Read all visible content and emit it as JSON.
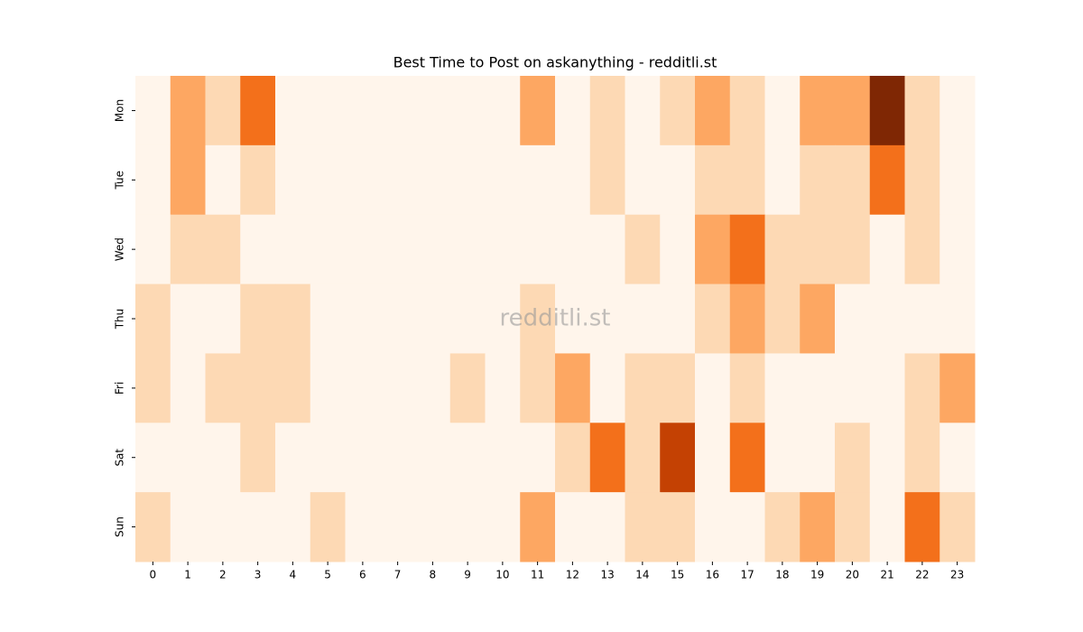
{
  "chart_data": {
    "type": "heatmap",
    "title": "Best Time to Post on askanything - redditli.st",
    "watermark": "redditli.st",
    "x_categories": [
      0,
      1,
      2,
      3,
      4,
      5,
      6,
      7,
      8,
      9,
      10,
      11,
      12,
      13,
      14,
      15,
      16,
      17,
      18,
      19,
      20,
      21,
      22,
      23
    ],
    "y_categories": [
      "Mon",
      "Tue",
      "Wed",
      "Thu",
      "Fri",
      "Sat",
      "Sun"
    ],
    "color_scale": [
      "#fff5eb",
      "#fdd9b4",
      "#fda762",
      "#f3701b",
      "#c44103",
      "#7f2704"
    ],
    "values": [
      [
        0,
        2,
        1,
        3,
        0,
        0,
        0,
        0,
        0,
        0,
        0,
        2,
        0,
        1,
        0,
        1,
        2,
        1,
        0,
        2,
        2,
        5,
        1,
        0
      ],
      [
        0,
        2,
        0,
        1,
        0,
        0,
        0,
        0,
        0,
        0,
        0,
        0,
        0,
        1,
        0,
        0,
        1,
        1,
        0,
        1,
        1,
        3,
        1,
        0
      ],
      [
        0,
        1,
        1,
        0,
        0,
        0,
        0,
        0,
        0,
        0,
        0,
        0,
        0,
        0,
        1,
        0,
        2,
        3,
        1,
        1,
        1,
        0,
        1,
        0
      ],
      [
        1,
        0,
        0,
        1,
        1,
        0,
        0,
        0,
        0,
        0,
        0,
        1,
        0,
        0,
        0,
        0,
        1,
        2,
        1,
        2,
        0,
        0,
        0,
        0
      ],
      [
        1,
        0,
        1,
        1,
        1,
        0,
        0,
        0,
        0,
        1,
        0,
        1,
        2,
        0,
        1,
        1,
        0,
        1,
        0,
        0,
        0,
        0,
        1,
        2
      ],
      [
        0,
        0,
        0,
        1,
        0,
        0,
        0,
        0,
        0,
        0,
        0,
        0,
        1,
        3,
        1,
        4,
        0,
        3,
        0,
        0,
        1,
        0,
        1,
        0
      ],
      [
        1,
        0,
        0,
        0,
        0,
        1,
        0,
        0,
        0,
        0,
        0,
        2,
        0,
        0,
        1,
        1,
        0,
        0,
        1,
        2,
        1,
        0,
        3,
        1
      ]
    ]
  }
}
